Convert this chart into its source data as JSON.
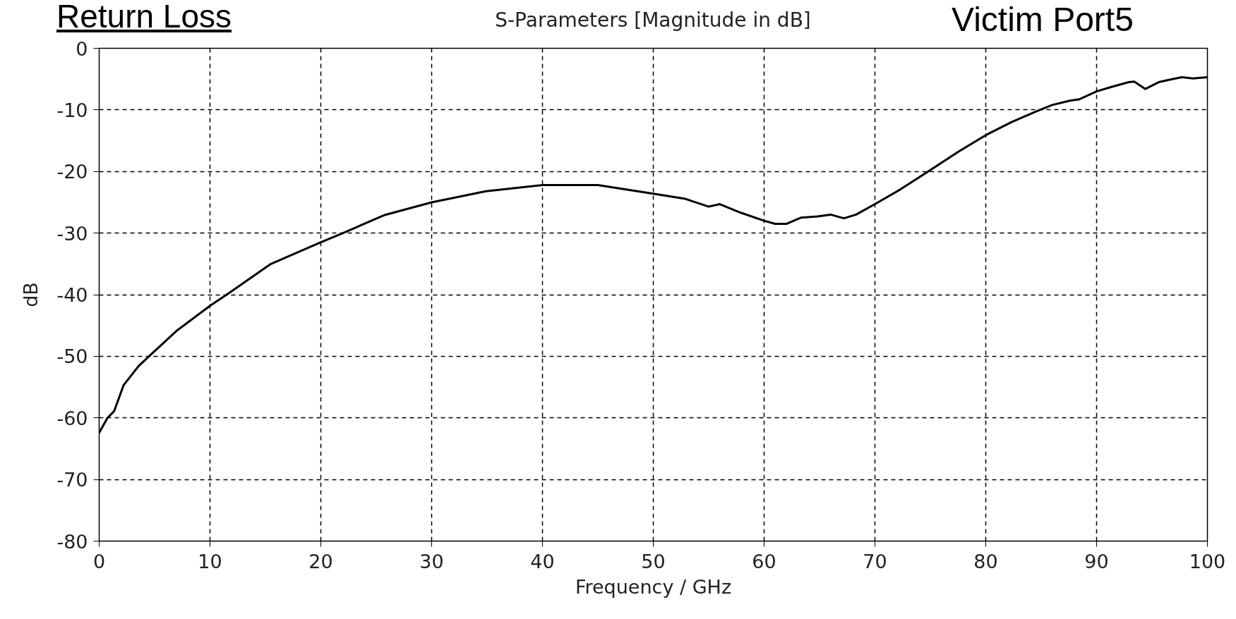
{
  "chart_data": {
    "type": "line",
    "title": "S-Parameters [Magnitude in dB]",
    "xlabel": "Frequency / GHz",
    "ylabel": "dB",
    "annotations": [
      "Return Loss",
      "Victim Port5"
    ],
    "x": [
      0,
      0.75,
      1.35,
      2.2,
      3.55,
      4.5,
      6.96,
      10,
      11.5,
      15.5,
      20,
      22,
      25.7,
      30,
      34.9,
      40,
      45,
      50,
      52.8,
      55,
      56,
      57.9,
      60,
      61,
      62,
      63.3,
      64.8,
      66,
      67.2,
      68.3,
      70,
      72.3,
      74.8,
      77.6,
      80,
      82.3,
      84.5,
      86,
      87.6,
      88.4,
      90,
      91.3,
      92.9,
      93.4,
      94.4,
      95.6,
      96.6,
      97.7,
      98.7,
      100
    ],
    "series": [
      {
        "color": "#000000",
        "values": [
          -62.4,
          -60,
          -58.9,
          -54.7,
          -51.6,
          -50,
          -45.9,
          -41.8,
          -40,
          -35,
          -31.5,
          -30,
          -27.1,
          -25,
          -23.2,
          -22.2,
          -22.2,
          -23.6,
          -24.4,
          -25.7,
          -25.3,
          -26.7,
          -28,
          -28.5,
          -28.5,
          -27.5,
          -27.3,
          -27,
          -27.6,
          -27,
          -25.3,
          -22.9,
          -20,
          -16.7,
          -14.1,
          -12,
          -10.3,
          -9.2,
          -8.5,
          -8.3,
          -7,
          -6.3,
          -5.5,
          -5.4,
          -6.6,
          -5.5,
          -5.1,
          -4.7,
          -4.9,
          -4.7
        ]
      }
    ],
    "xlim": [
      0,
      100
    ],
    "ylim": [
      -80,
      0
    ],
    "xticks": [
      0,
      10,
      20,
      30,
      40,
      50,
      60,
      70,
      80,
      90,
      100
    ],
    "yticks": [
      -80,
      -70,
      -60,
      -50,
      -40,
      -30,
      -20,
      -10,
      0
    ],
    "grid": true,
    "line_style": "solid"
  }
}
